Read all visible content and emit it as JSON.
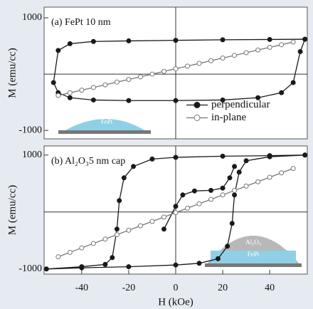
{
  "chart_data": [
    {
      "type": "line",
      "title": "(a) FePt 10 nm",
      "ylabel": "M (emu/cc)",
      "xlim": [
        -56,
        56
      ],
      "ylim": [
        -1150,
        1190
      ],
      "yticks": [
        -1000,
        1000
      ],
      "legend": "center right",
      "inset_labels": [
        "FePt"
      ],
      "series": [
        {
          "name": "perpendicular",
          "color": "#1a1a1a",
          "marker": "filled",
          "x": [
            55,
            40,
            20,
            0,
            -20,
            -35,
            -45,
            -50,
            -52,
            -50,
            -45,
            -35,
            -20,
            0,
            20,
            35,
            45,
            50,
            53,
            55
          ],
          "values": [
            620,
            615,
            610,
            600,
            590,
            580,
            540,
            420,
            -150,
            -330,
            -420,
            -460,
            -470,
            -470,
            -460,
            -420,
            -330,
            -150,
            400,
            620
          ]
        },
        {
          "name": "in-plane",
          "color": "#777777",
          "marker": "open",
          "x": [
            -50,
            -45,
            -40,
            -35,
            -30,
            -25,
            -20,
            -15,
            -10,
            -5,
            0,
            5,
            10,
            15,
            20,
            25,
            30,
            35,
            40,
            45,
            50
          ],
          "values": [
            -380,
            -332,
            -285,
            -238,
            -190,
            -142,
            -95,
            -48,
            0,
            48,
            95,
            142,
            190,
            238,
            285,
            332,
            380,
            428,
            475,
            522,
            570
          ]
        }
      ]
    },
    {
      "type": "line",
      "title": "(b) Al₂O₃5 nm cap",
      "ylabel": "M (emu/cc)",
      "xlabel": "H (kOe)",
      "xlim": [
        -56,
        56
      ],
      "ylim": [
        -1090,
        1160
      ],
      "yticks": [
        -1000,
        1000
      ],
      "xticks": [
        -40,
        -20,
        0,
        20,
        40
      ],
      "inset_labels": [
        "Al₂O₃",
        "FePt"
      ],
      "series": [
        {
          "color": "#1a1a1a",
          "marker": "filled",
          "x": [
            55,
            40,
            20,
            0,
            -10,
            -18,
            -22,
            -24,
            -25,
            -27,
            -30,
            -40,
            -55,
            -40,
            -20,
            0,
            10,
            18,
            22,
            24,
            25,
            27,
            30,
            40,
            55
          ],
          "values": [
            1000,
            990,
            980,
            960,
            930,
            800,
            600,
            200,
            -300,
            -800,
            -920,
            -960,
            -1000,
            -980,
            -960,
            -930,
            -900,
            -820,
            -600,
            -200,
            300,
            700,
            900,
            970,
            1000
          ]
        },
        {
          "color": "#1a1a1a",
          "marker": "filled",
          "x": [
            -5,
            0,
            3,
            8,
            15,
            20,
            23,
            25
          ],
          "values": [
            -300,
            100,
            300,
            370,
            380,
            420,
            600,
            800
          ]
        },
        {
          "color": "#777777",
          "marker": "open",
          "x": [
            -50,
            -45,
            -40,
            -35,
            -30,
            -25,
            -20,
            -15,
            -10,
            -5,
            0,
            5,
            10,
            15,
            20,
            25,
            30,
            35,
            40,
            45,
            50
          ],
          "values": [
            -785,
            -708,
            -630,
            -552,
            -475,
            -398,
            -320,
            -242,
            -165,
            -88,
            -10,
            68,
            145,
            222,
            300,
            378,
            455,
            532,
            610,
            688,
            765
          ]
        }
      ]
    }
  ]
}
